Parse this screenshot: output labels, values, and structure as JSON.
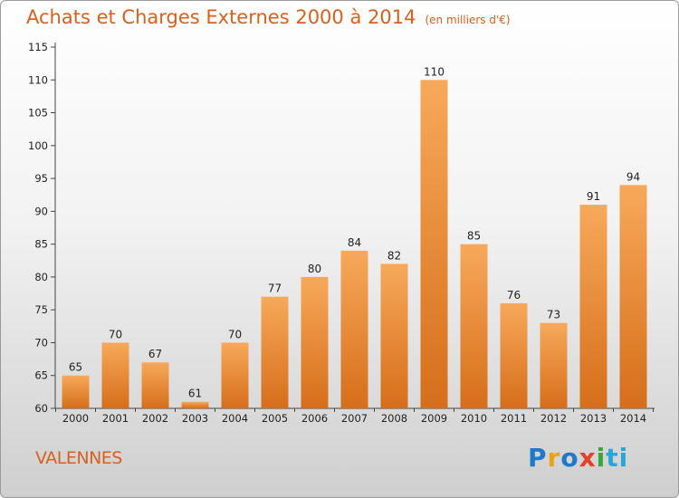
{
  "chart_data": {
    "type": "bar",
    "title": "Achats et Charges Externes 2000 à 2014",
    "subtitle": "(en milliers d'€)",
    "categories": [
      "2000",
      "2001",
      "2002",
      "2003",
      "2004",
      "2005",
      "2006",
      "2007",
      "2008",
      "2009",
      "2010",
      "2011",
      "2012",
      "2013",
      "2014"
    ],
    "values": [
      65,
      70,
      67,
      61,
      70,
      77,
      80,
      84,
      82,
      110,
      85,
      76,
      73,
      91,
      94
    ],
    "ylim": [
      60,
      115
    ],
    "yticks": [
      60,
      65,
      70,
      75,
      80,
      85,
      90,
      95,
      100,
      105,
      110,
      115
    ],
    "grid": false,
    "bar_color": "#f08c30"
  },
  "footer": {
    "commune": "VALENNES",
    "logo_letters": [
      "P",
      "r",
      "o",
      "x",
      "i",
      "ti"
    ]
  }
}
